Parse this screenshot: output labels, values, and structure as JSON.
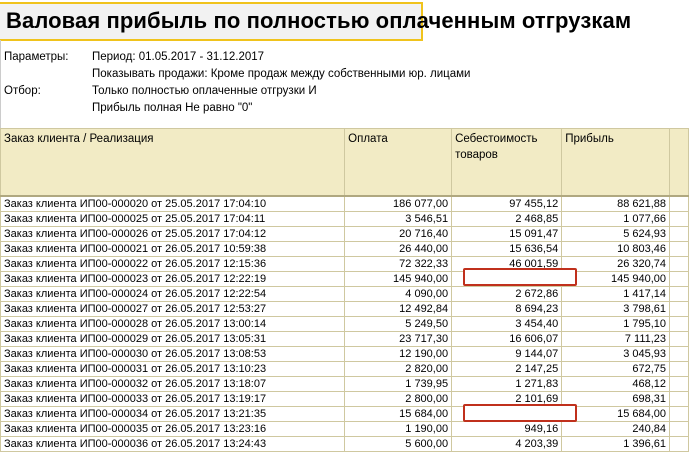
{
  "report": {
    "title": "Валовая прибыль по полностью оплаченным отгрузкам",
    "params_label": "Параметры:",
    "period": "Период: 01.05.2017 - 31.12.2017",
    "show_sales": "Показывать продажи: Кроме продаж между собственными юр. лицами",
    "filter_label": "Отбор:",
    "filter_1": "Только полностью оплаченные отгрузки И",
    "filter_2": "Прибыль полная Не равно \"0\""
  },
  "table": {
    "columns": [
      "Заказ клиента / Реализация",
      "Оплата",
      "Себестоимость товаров",
      "Прибыль"
    ],
    "rows": [
      [
        "Заказ клиента ИП00-000020 от 25.05.2017 17:04:10",
        "186 077,00",
        "97 455,12",
        "88 621,88"
      ],
      [
        "Заказ клиента ИП00-000025 от 25.05.2017 17:04:11",
        "3 546,51",
        "2 468,85",
        "1 077,66"
      ],
      [
        "Заказ клиента ИП00-000026 от 25.05.2017 17:04:12",
        "20 716,40",
        "15 091,47",
        "5 624,93"
      ],
      [
        "Заказ клиента ИП00-000021 от 26.05.2017 10:59:38",
        "26 440,00",
        "15 636,54",
        "10 803,46"
      ],
      [
        "Заказ клиента ИП00-000022 от 26.05.2017 12:15:36",
        "72 322,33",
        "46 001,59",
        "26 320,74"
      ],
      [
        "Заказ клиента ИП00-000023 от 26.05.2017 12:22:19",
        "145 940,00",
        "",
        "145 940,00"
      ],
      [
        "Заказ клиента ИП00-000024 от 26.05.2017 12:22:54",
        "4 090,00",
        "2 672,86",
        "1 417,14"
      ],
      [
        "Заказ клиента ИП00-000027 от 26.05.2017 12:53:27",
        "12 492,84",
        "8 694,23",
        "3 798,61"
      ],
      [
        "Заказ клиента ИП00-000028 от 26.05.2017 13:00:14",
        "5 249,50",
        "3 454,40",
        "1 795,10"
      ],
      [
        "Заказ клиента ИП00-000029 от 26.05.2017 13:05:31",
        "23 717,30",
        "16 606,07",
        "7 111,23"
      ],
      [
        "Заказ клиента ИП00-000030 от 26.05.2017 13:08:53",
        "12 190,00",
        "9 144,07",
        "3 045,93"
      ],
      [
        "Заказ клиента ИП00-000031 от 26.05.2017 13:10:23",
        "2 820,00",
        "2 147,25",
        "672,75"
      ],
      [
        "Заказ клиента ИП00-000032 от 26.05.2017 13:18:07",
        "1 739,95",
        "1 271,83",
        "468,12"
      ],
      [
        "Заказ клиента ИП00-000033 от 26.05.2017 13:19:17",
        "2 800,00",
        "2 101,69",
        "698,31"
      ],
      [
        "Заказ клиента ИП00-000034 от 26.05.2017 13:21:35",
        "15 684,00",
        "",
        "15 684,00"
      ],
      [
        "Заказ клиента ИП00-000035 от 26.05.2017 13:23:16",
        "1 190,00",
        "949,16",
        "240,84"
      ],
      [
        "Заказ клиента ИП00-000036 от 26.05.2017 13:24:43",
        "5 600,00",
        "4 203,39",
        "1 396,61"
      ]
    ],
    "highlighted_rows": [
      5,
      14
    ],
    "highlight_color": "#c0301c",
    "header_bg": "#f2ebc5"
  }
}
